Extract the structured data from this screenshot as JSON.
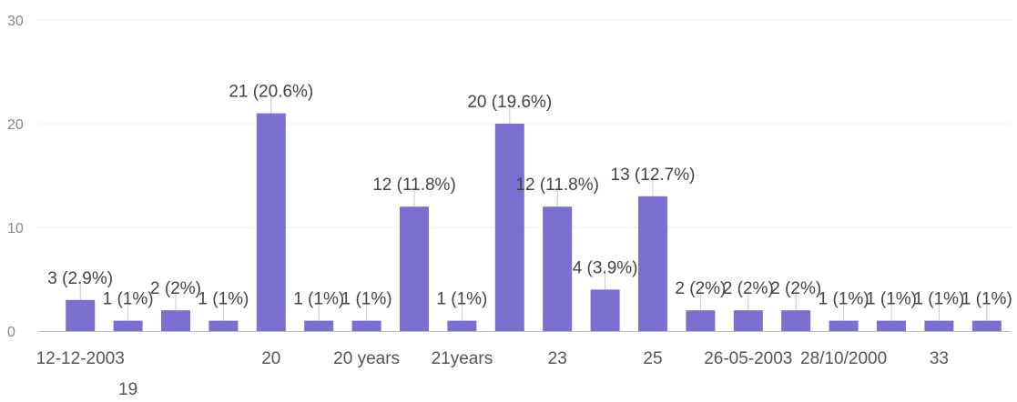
{
  "chart_data": {
    "type": "bar",
    "categories": [
      "12-12-2003",
      "19",
      "",
      "",
      "20",
      "",
      "20 years",
      "",
      "21years",
      "",
      "23",
      "",
      "25",
      "",
      "26-05-2003",
      "",
      "28/10/2000",
      "",
      "33",
      ""
    ],
    "values": [
      3,
      1,
      2,
      1,
      21,
      1,
      1,
      12,
      1,
      20,
      12,
      4,
      13,
      2,
      2,
      2,
      1,
      1,
      1,
      1
    ],
    "data_labels": [
      "3 (2.9%)",
      "1 (1%)",
      "2 (2%)",
      "1 (1%)",
      "21 (20.6%)",
      "1 (1%)",
      "1 (1%)",
      "12 (11.8%)",
      "1 (1%)",
      "20 (19.6%)",
      "12 (11.8%)",
      "4 (3.9%)",
      "13 (12.7%)",
      "2 (2%)",
      "2 (2%)",
      "2 (2%)",
      "1 (1%)",
      "1 (1%)",
      "1 (1%)",
      "1 (1%)"
    ],
    "y_ticks": [
      "0",
      "10",
      "20",
      "30"
    ],
    "ylim": [
      0,
      30
    ],
    "grid": true,
    "bar_color": "#7b6fd0",
    "title": "",
    "xlabel": "",
    "ylabel": ""
  }
}
